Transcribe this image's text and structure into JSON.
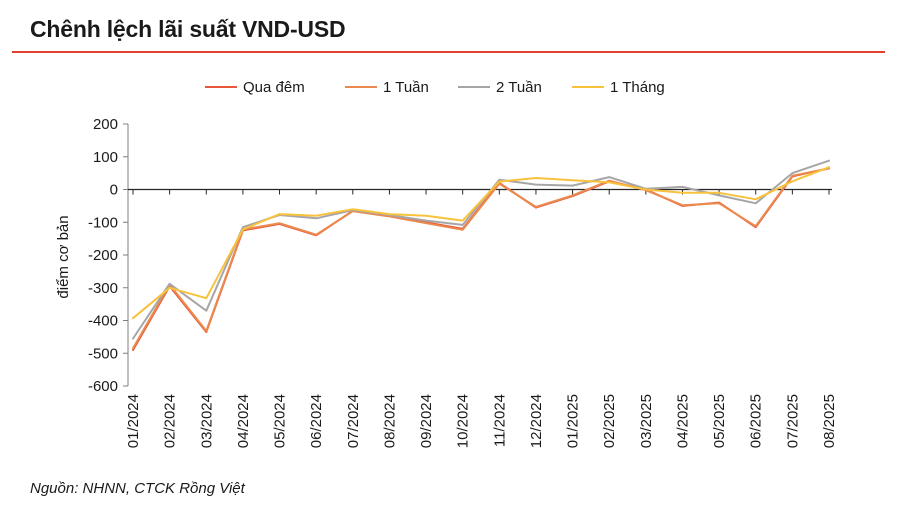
{
  "title": "Chênh lệch lãi suất VND-USD",
  "source": "Nguồn: NHNN, CTCK Rồng Việt",
  "chart_data": {
    "type": "line",
    "ylabel": "điểm cơ bản",
    "xlabel": "",
    "ylim": [
      -600,
      200
    ],
    "yticks": [
      200,
      100,
      0,
      -100,
      -200,
      -300,
      -400,
      -500,
      -600
    ],
    "legend_position": "top",
    "grid": false,
    "categories": [
      "01/2024",
      "02/2024",
      "03/2024",
      "04/2024",
      "05/2024",
      "06/2024",
      "07/2024",
      "08/2024",
      "09/2024",
      "10/2024",
      "11/2024",
      "12/2024",
      "01/2025",
      "02/2025",
      "03/2025",
      "04/2025",
      "05/2025",
      "06/2025",
      "07/2025",
      "08/2025"
    ],
    "series": [
      {
        "name": "Qua đêm",
        "color": "#e8563a",
        "values": [
          -490,
          -295,
          -435,
          -125,
          -105,
          -140,
          -65,
          -80,
          -100,
          -120,
          20,
          -55,
          -20,
          25,
          0,
          -50,
          -40,
          -115,
          40,
          65
        ]
      },
      {
        "name": "1 Tuần",
        "color": "#ea8a4e",
        "values": [
          -485,
          -290,
          -432,
          -122,
          -103,
          -138,
          -66,
          -82,
          -103,
          -123,
          18,
          -53,
          -18,
          27,
          -2,
          -48,
          -42,
          -112,
          42,
          64
        ]
      },
      {
        "name": "2 Tuần",
        "color": "#a6a6a6",
        "values": [
          -455,
          -288,
          -370,
          -115,
          -78,
          -88,
          -63,
          -78,
          -95,
          -108,
          30,
          15,
          12,
          38,
          2,
          8,
          -18,
          -42,
          50,
          88
        ]
      },
      {
        "name": "1 Tháng",
        "color": "#f9c23c",
        "values": [
          -393,
          -300,
          -332,
          -122,
          -75,
          -80,
          -60,
          -75,
          -80,
          -95,
          24,
          35,
          28,
          22,
          0,
          -10,
          -10,
          -30,
          25,
          68
        ]
      }
    ]
  }
}
